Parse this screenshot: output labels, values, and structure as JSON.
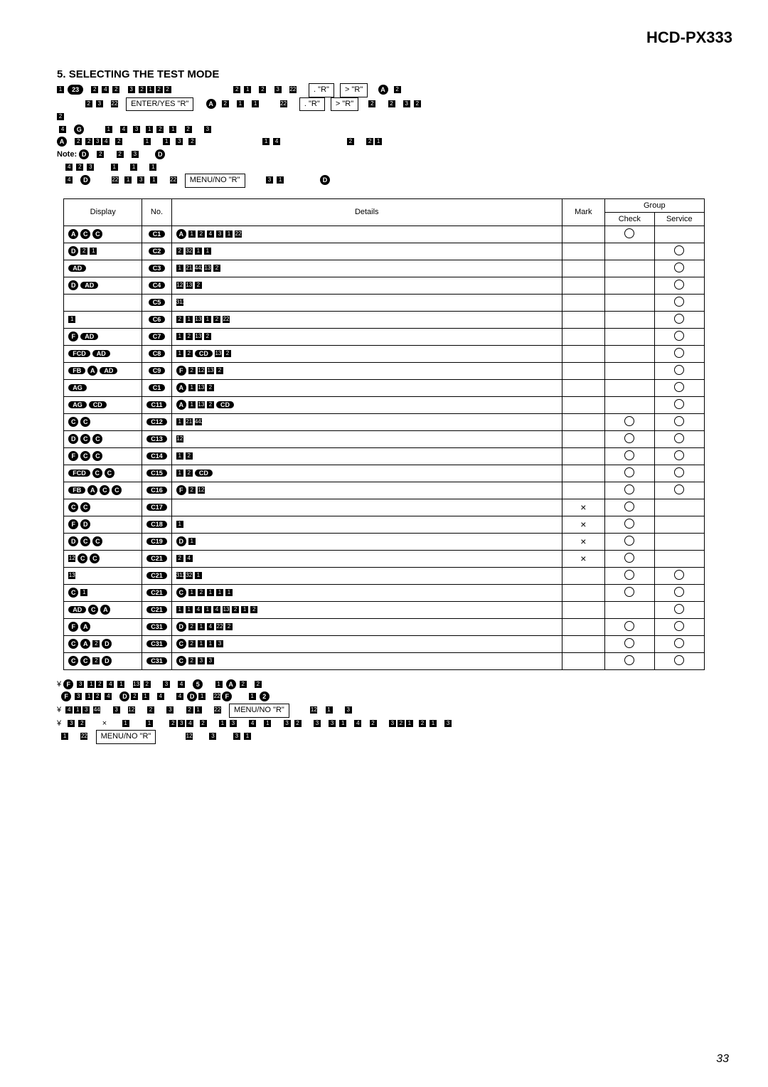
{
  "model": "HCD-PX333",
  "section_number": "5.",
  "section_title": "SELECTING THE TEST MODE",
  "key_enter": "ENTER/YES \"R\"",
  "key_menu": "MENU/NO \"R\"",
  "key_dot_r": ". \"R\"",
  "key_gt_r": "> \"R\"",
  "note_label": "Note:",
  "table": {
    "headers": {
      "display": "Display",
      "no": "No.",
      "details": "Details",
      "mark": "Mark",
      "group": "Group",
      "check": "Check",
      "service": "Service"
    },
    "rows": [
      {
        "display": [
          "A",
          "C",
          "C"
        ],
        "no": [
          "C",
          "1"
        ],
        "details": [
          "A",
          "1",
          "2",
          "4",
          "3",
          "1",
          "22"
        ],
        "mark": "",
        "check": "o",
        "service": ""
      },
      {
        "display": [
          "D",
          "2",
          "1"
        ],
        "no": [
          "C",
          "2"
        ],
        "details": [
          "2",
          "32",
          "1",
          "1"
        ],
        "mark": "",
        "check": "",
        "service": "o"
      },
      {
        "display": [
          "AD"
        ],
        "no": [
          "C",
          "3"
        ],
        "details": [
          "1",
          "21",
          "442",
          "13",
          "2"
        ],
        "mark": "",
        "check": "",
        "service": "o"
      },
      {
        "display": [
          "D",
          "AD"
        ],
        "no": [
          "C",
          "4"
        ],
        "details": [
          "12",
          "13",
          "2"
        ],
        "mark": "",
        "check": "",
        "service": "o"
      },
      {
        "display": [],
        "no": [
          "C",
          "5"
        ],
        "details": [
          "311"
        ],
        "mark": "",
        "check": "",
        "service": "o"
      },
      {
        "display": [
          "1"
        ],
        "no": [
          "C",
          "6"
        ],
        "details": [
          "2",
          "1",
          "13",
          "1",
          "2",
          "22"
        ],
        "mark": "",
        "check": "",
        "service": "o"
      },
      {
        "display": [
          "F",
          "AD"
        ],
        "no": [
          "C",
          "7"
        ],
        "details": [
          "1",
          "2",
          "13",
          "2"
        ],
        "mark": "",
        "check": "",
        "service": "o"
      },
      {
        "display": [
          "FCD",
          "AD"
        ],
        "no": [
          "C",
          "8"
        ],
        "details": [
          "1",
          "2",
          "CD",
          "13",
          "2"
        ],
        "mark": "",
        "check": "",
        "service": "o"
      },
      {
        "display": [
          "FB",
          "A",
          "AD"
        ],
        "no": [
          "C",
          "9"
        ],
        "details": [
          "F",
          "2",
          "12",
          "13",
          "2"
        ],
        "mark": "",
        "check": "",
        "service": "o"
      },
      {
        "display": [
          "AG"
        ],
        "no": [
          "C",
          "1"
        ],
        "details": [
          "A",
          "1",
          "13",
          "2"
        ],
        "mark": "",
        "check": "",
        "service": "o"
      },
      {
        "display": [
          "AG",
          "CD"
        ],
        "no": [
          "C",
          "11"
        ],
        "details": [
          "A",
          "1",
          "13",
          "2",
          "CD"
        ],
        "mark": "",
        "check": "",
        "service": "o"
      },
      {
        "display": [
          "C",
          "C"
        ],
        "no": [
          "C",
          "12"
        ],
        "details": [
          "1",
          "21",
          "442"
        ],
        "mark": "",
        "check": "o",
        "service": "o"
      },
      {
        "display": [
          "D",
          "C",
          "C"
        ],
        "no": [
          "C",
          "13"
        ],
        "details": [
          "12"
        ],
        "mark": "",
        "check": "o",
        "service": "o"
      },
      {
        "display": [
          "F",
          "C",
          "C"
        ],
        "no": [
          "C",
          "14"
        ],
        "details": [
          "1",
          "2"
        ],
        "mark": "",
        "check": "o",
        "service": "o"
      },
      {
        "display": [
          "FCD",
          "C",
          "C"
        ],
        "no": [
          "C",
          "15"
        ],
        "details": [
          "1",
          "2",
          "CD"
        ],
        "mark": "",
        "check": "o",
        "service": "o"
      },
      {
        "display": [
          "FB",
          "A",
          "C",
          "C"
        ],
        "no": [
          "C",
          "16"
        ],
        "details": [
          "F",
          "2",
          "12"
        ],
        "mark": "",
        "check": "o",
        "service": "o"
      },
      {
        "display": [
          "C",
          "C"
        ],
        "no": [
          "C",
          "17"
        ],
        "details": [],
        "mark": "x",
        "check": "o",
        "service": ""
      },
      {
        "display": [
          "F",
          "D"
        ],
        "no": [
          "C",
          "18"
        ],
        "details": [
          "1"
        ],
        "mark": "x",
        "check": "o",
        "service": ""
      },
      {
        "display": [
          "D",
          "C",
          "C"
        ],
        "no": [
          "C",
          "19"
        ],
        "details": [
          "D",
          "1"
        ],
        "mark": "x",
        "check": "o",
        "service": ""
      },
      {
        "display": [
          "12",
          "C",
          "C"
        ],
        "no": [
          "C",
          "21"
        ],
        "details": [
          "2",
          "4"
        ],
        "mark": "x",
        "check": "o",
        "service": ""
      },
      {
        "display": [
          "13"
        ],
        "no": [
          "C",
          "21"
        ],
        "details": [
          "311",
          "32",
          "1"
        ],
        "mark": "",
        "check": "o",
        "service": "o"
      },
      {
        "display": [
          "C",
          "1"
        ],
        "no": [
          "C",
          "21"
        ],
        "details": [
          "C",
          "1",
          "2",
          "1",
          "1",
          "1"
        ],
        "mark": "",
        "check": "o",
        "service": "o"
      },
      {
        "display": [
          "AD",
          "C",
          "A"
        ],
        "no": [
          "C",
          "21"
        ],
        "details": [
          "1",
          "1",
          "4",
          "1",
          "4",
          "13",
          "2",
          "1",
          "2"
        ],
        "mark": "",
        "check": "",
        "service": "o"
      },
      {
        "display": [
          "F",
          "A"
        ],
        "no": [
          "C",
          "31"
        ],
        "details": [
          "D",
          "2",
          "1",
          "4",
          "22",
          "2"
        ],
        "mark": "",
        "check": "o",
        "service": "o"
      },
      {
        "display": [
          "C",
          "A",
          "2",
          "D"
        ],
        "no": [
          "C",
          "31"
        ],
        "details": [
          "C",
          "2",
          "1",
          "1",
          "3"
        ],
        "mark": "",
        "check": "o",
        "service": "o"
      },
      {
        "display": [
          "C",
          "C",
          "2",
          "D"
        ],
        "no": [
          "C",
          "31"
        ],
        "details": [
          "C",
          "2",
          "3",
          "3"
        ],
        "mark": "",
        "check": "o",
        "service": "o"
      }
    ]
  },
  "footer_keys": {
    "menu1": "MENU/NO \"R\"",
    "menu2": "MENU/NO \"R\""
  },
  "page_number": "33"
}
